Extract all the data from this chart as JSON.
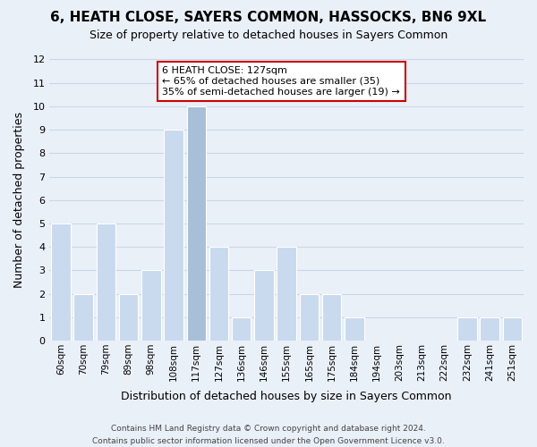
{
  "title": "6, HEATH CLOSE, SAYERS COMMON, HASSOCKS, BN6 9XL",
  "subtitle": "Size of property relative to detached houses in Sayers Common",
  "xlabel": "Distribution of detached houses by size in Sayers Common",
  "ylabel": "Number of detached properties",
  "bin_labels": [
    "60sqm",
    "70sqm",
    "79sqm",
    "89sqm",
    "98sqm",
    "108sqm",
    "117sqm",
    "127sqm",
    "136sqm",
    "146sqm",
    "155sqm",
    "165sqm",
    "175sqm",
    "184sqm",
    "194sqm",
    "203sqm",
    "213sqm",
    "222sqm",
    "232sqm",
    "241sqm",
    "251sqm"
  ],
  "bar_heights": [
    5,
    2,
    5,
    2,
    3,
    9,
    10,
    4,
    1,
    3,
    4,
    2,
    2,
    1,
    0,
    0,
    0,
    0,
    1,
    1,
    1
  ],
  "highlight_bar_index": 6,
  "bar_color_normal": "#c9d9ee",
  "bar_color_highlight": "#a8bfd8",
  "bar_edge_color": "#ffffff",
  "grid_color": "#c8d8e8",
  "background_color": "#eaf0f8",
  "annotation_box_line1": "6 HEATH CLOSE: 127sqm",
  "annotation_box_line2": "← 65% of detached houses are smaller (35)",
  "annotation_box_line3": "35% of semi-detached houses are larger (19) →",
  "annotation_box_color": "#ffffff",
  "annotation_box_edge_color": "#cc0000",
  "ylim": [
    0,
    12
  ],
  "yticks": [
    0,
    1,
    2,
    3,
    4,
    5,
    6,
    7,
    8,
    9,
    10,
    11,
    12
  ],
  "footer_line1": "Contains HM Land Registry data © Crown copyright and database right 2024.",
  "footer_line2": "Contains public sector information licensed under the Open Government Licence v3.0."
}
